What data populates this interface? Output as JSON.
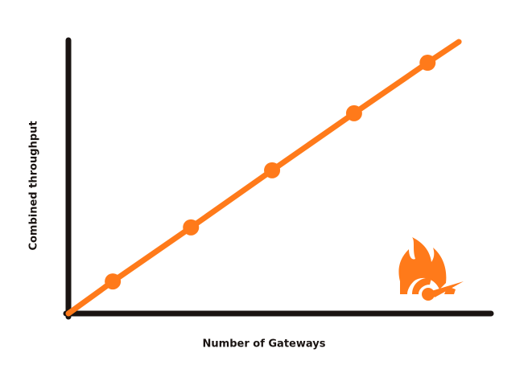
{
  "chart_data": {
    "type": "line",
    "x_label": "Number of Gateways",
    "y_label": "Combined throughput",
    "xlim": [
      0,
      100
    ],
    "ylim": [
      0,
      100
    ],
    "series": [
      {
        "color": "#ff7a1a",
        "x": [
          0,
          10.5,
          29,
          48.2,
          67.6,
          85,
          92.4
        ],
        "values": [
          0,
          11.8,
          31.7,
          52.7,
          73.7,
          92.3,
          100
        ],
        "markers": false
      },
      {
        "color": "#ff7a1a",
        "x": [
          10.5,
          29,
          48.2,
          67.6,
          85
        ],
        "values": [
          11.8,
          31.7,
          52.7,
          73.7,
          92.3
        ],
        "markers": true
      }
    ]
  }
}
